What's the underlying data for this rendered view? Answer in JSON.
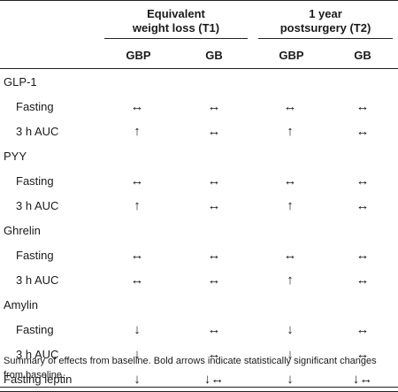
{
  "header": {
    "group1": [
      "Equivalent",
      "weight loss (T1)"
    ],
    "group2": [
      "1 year",
      "postsurgery (T2)"
    ],
    "sub": [
      "GBP",
      "GB",
      "GBP",
      "GB"
    ]
  },
  "sections": [
    {
      "name": "GLP-1",
      "rows": [
        {
          "label": "Fasting",
          "cells": [
            "↔",
            "↔",
            "↔",
            "↔"
          ]
        },
        {
          "label": "3 h AUC",
          "cells": [
            "↑",
            "↔",
            "↑",
            "↔"
          ]
        }
      ]
    },
    {
      "name": "PYY",
      "rows": [
        {
          "label": "Fasting",
          "cells": [
            "↔",
            "↔",
            "↔",
            "↔"
          ]
        },
        {
          "label": "3 h AUC",
          "cells": [
            "↑",
            "↔",
            "↑",
            "↔"
          ]
        }
      ]
    },
    {
      "name": "Ghrelin",
      "rows": [
        {
          "label": "Fasting",
          "cells": [
            "↔",
            "↔",
            "↔",
            "↔"
          ]
        },
        {
          "label": "3 h AUC",
          "cells": [
            "↔",
            "↔",
            "↑",
            "↔"
          ]
        }
      ]
    },
    {
      "name": "Amylin",
      "rows": [
        {
          "label": "Fasting",
          "cells": [
            "↓",
            "↔",
            "↓",
            "↔"
          ]
        },
        {
          "label": "3 h AUC",
          "cells": [
            "↓",
            "↔",
            "↓",
            "↔"
          ]
        }
      ]
    }
  ],
  "last_row": {
    "label": "Fasting leptin",
    "cells": [
      "↓",
      "↓↔",
      "↓",
      "↓↔"
    ]
  },
  "footnote": "Summary of effects from baseline. Bold arrows indicate statistically significant changes from baseline."
}
